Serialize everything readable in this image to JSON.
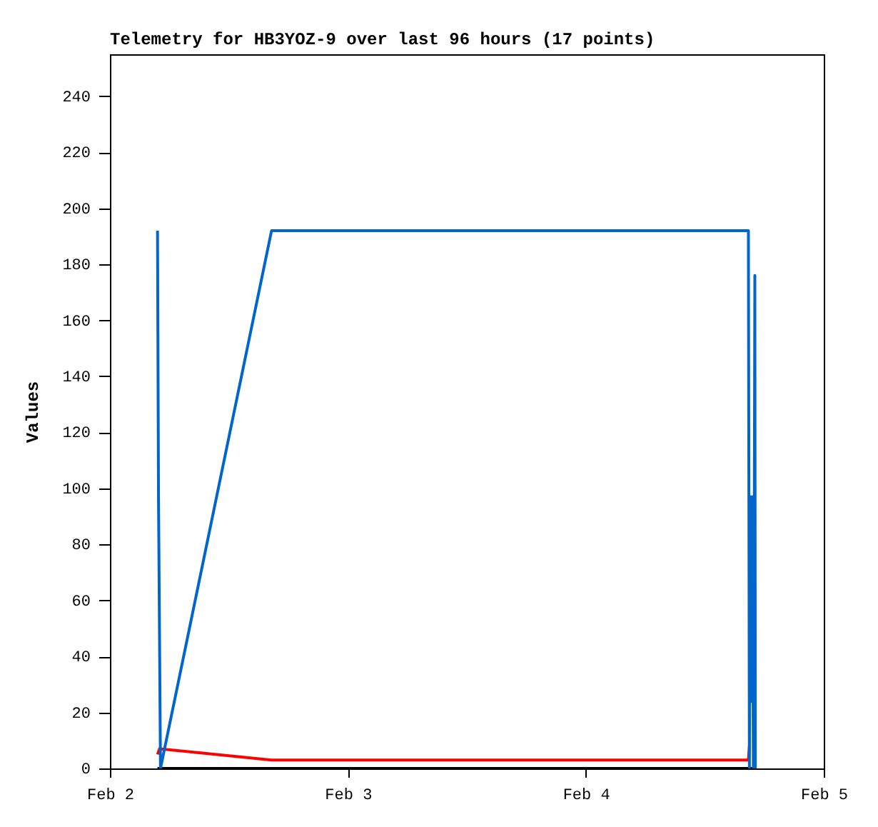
{
  "chart_data": {
    "type": "line",
    "title": "Telemetry for HB3YOZ-9 over last 96 hours (17 points)",
    "ylabel": "Values",
    "xlim": [
      "--02-02",
      "--02-05"
    ],
    "xticks": [
      {
        "value": "--02-02",
        "label": "Feb 2"
      },
      {
        "value": "--02-03",
        "label": "Feb 3"
      },
      {
        "value": "--02-04",
        "label": "Feb 4"
      },
      {
        "value": "--02-05",
        "label": "Feb 5"
      }
    ],
    "ylim": [
      0,
      255
    ],
    "yticks": [
      0,
      20,
      40,
      60,
      80,
      100,
      120,
      140,
      160,
      180,
      200,
      220,
      240
    ],
    "grid": false,
    "series": [
      {
        "color": "#000000",
        "x": [
          "--02-02T04:48",
          "--02-04T17:06"
        ],
        "values": [
          0,
          0
        ]
      },
      {
        "color": "#ff0000",
        "x": [
          "--02-02T04:48",
          "--02-02T05:00",
          "--02-02T16:18",
          "--02-04T16:24",
          "--02-04T16:30"
        ],
        "values": [
          5,
          7,
          3,
          3,
          8
        ]
      },
      {
        "color": "#0066cc",
        "x": [
          "--02-02T04:48",
          "--02-02T04:54",
          "--02-02T05:06",
          "--02-02T16:18",
          "--02-04T16:24",
          "--02-04T16:27",
          "--02-04T16:30",
          "--02-04T16:36",
          "--02-04T16:42",
          "--02-04T16:48",
          "--02-04T16:54",
          "--02-04T17:00",
          "--02-04T17:03",
          "--02-04T17:06"
        ],
        "values": [
          192,
          97,
          0,
          192,
          192,
          97,
          0,
          97,
          24,
          97,
          0,
          97,
          176,
          0
        ]
      }
    ]
  }
}
